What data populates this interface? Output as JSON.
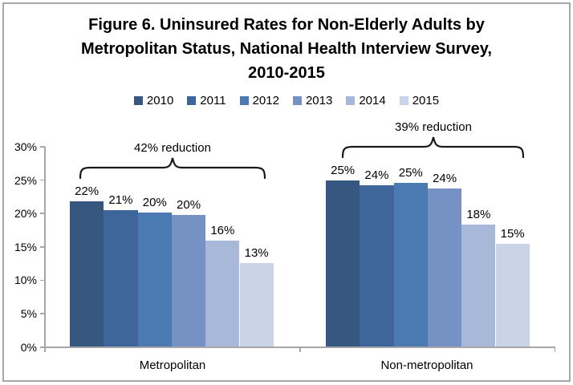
{
  "figure": {
    "title": "Figure 6. Uninsured Rates for Non-Elderly Adults by\nMetropolitan Status, National Health Interview Survey,\n2010-2015"
  },
  "chart_data": {
    "type": "bar",
    "title": "Figure 6. Uninsured Rates for Non-Elderly Adults by Metropolitan Status, National Health Interview Survey, 2010-2015",
    "categories": [
      "Metropolitan",
      "Non-metropolitan"
    ],
    "series": [
      {
        "name": "2010",
        "color": "#355780",
        "values": [
          22,
          25
        ],
        "precise": [
          21.8,
          25.0
        ]
      },
      {
        "name": "2011",
        "color": "#3E669B",
        "values": [
          21,
          24
        ],
        "precise": [
          20.5,
          24.2
        ]
      },
      {
        "name": "2012",
        "color": "#4B79B2",
        "values": [
          20,
          25
        ],
        "precise": [
          20.1,
          24.6
        ]
      },
      {
        "name": "2013",
        "color": "#7692C4",
        "values": [
          20,
          24
        ],
        "precise": [
          19.8,
          23.7
        ]
      },
      {
        "name": "2014",
        "color": "#A7B8D9",
        "values": [
          16,
          18
        ],
        "precise": [
          15.9,
          18.3
        ]
      },
      {
        "name": "2015",
        "color": "#CAD4E9",
        "values": [
          13,
          15
        ],
        "precise": [
          12.6,
          15.4
        ]
      }
    ],
    "data_label_suffix": "%",
    "annotations": [
      {
        "category": "Metropolitan",
        "text": "42% reduction"
      },
      {
        "category": "Non-metropolitan",
        "text": "39% reduction"
      }
    ],
    "yticks": [
      "30%",
      "25%",
      "20%",
      "15%",
      "10%",
      "5%",
      "0%"
    ],
    "ylim": [
      0,
      30
    ],
    "ytick_step": 5,
    "xlabel": "",
    "ylabel": "",
    "grid": false,
    "legend_position": "top",
    "axis_color": "#A6A6A6",
    "text_color": "#000000"
  }
}
